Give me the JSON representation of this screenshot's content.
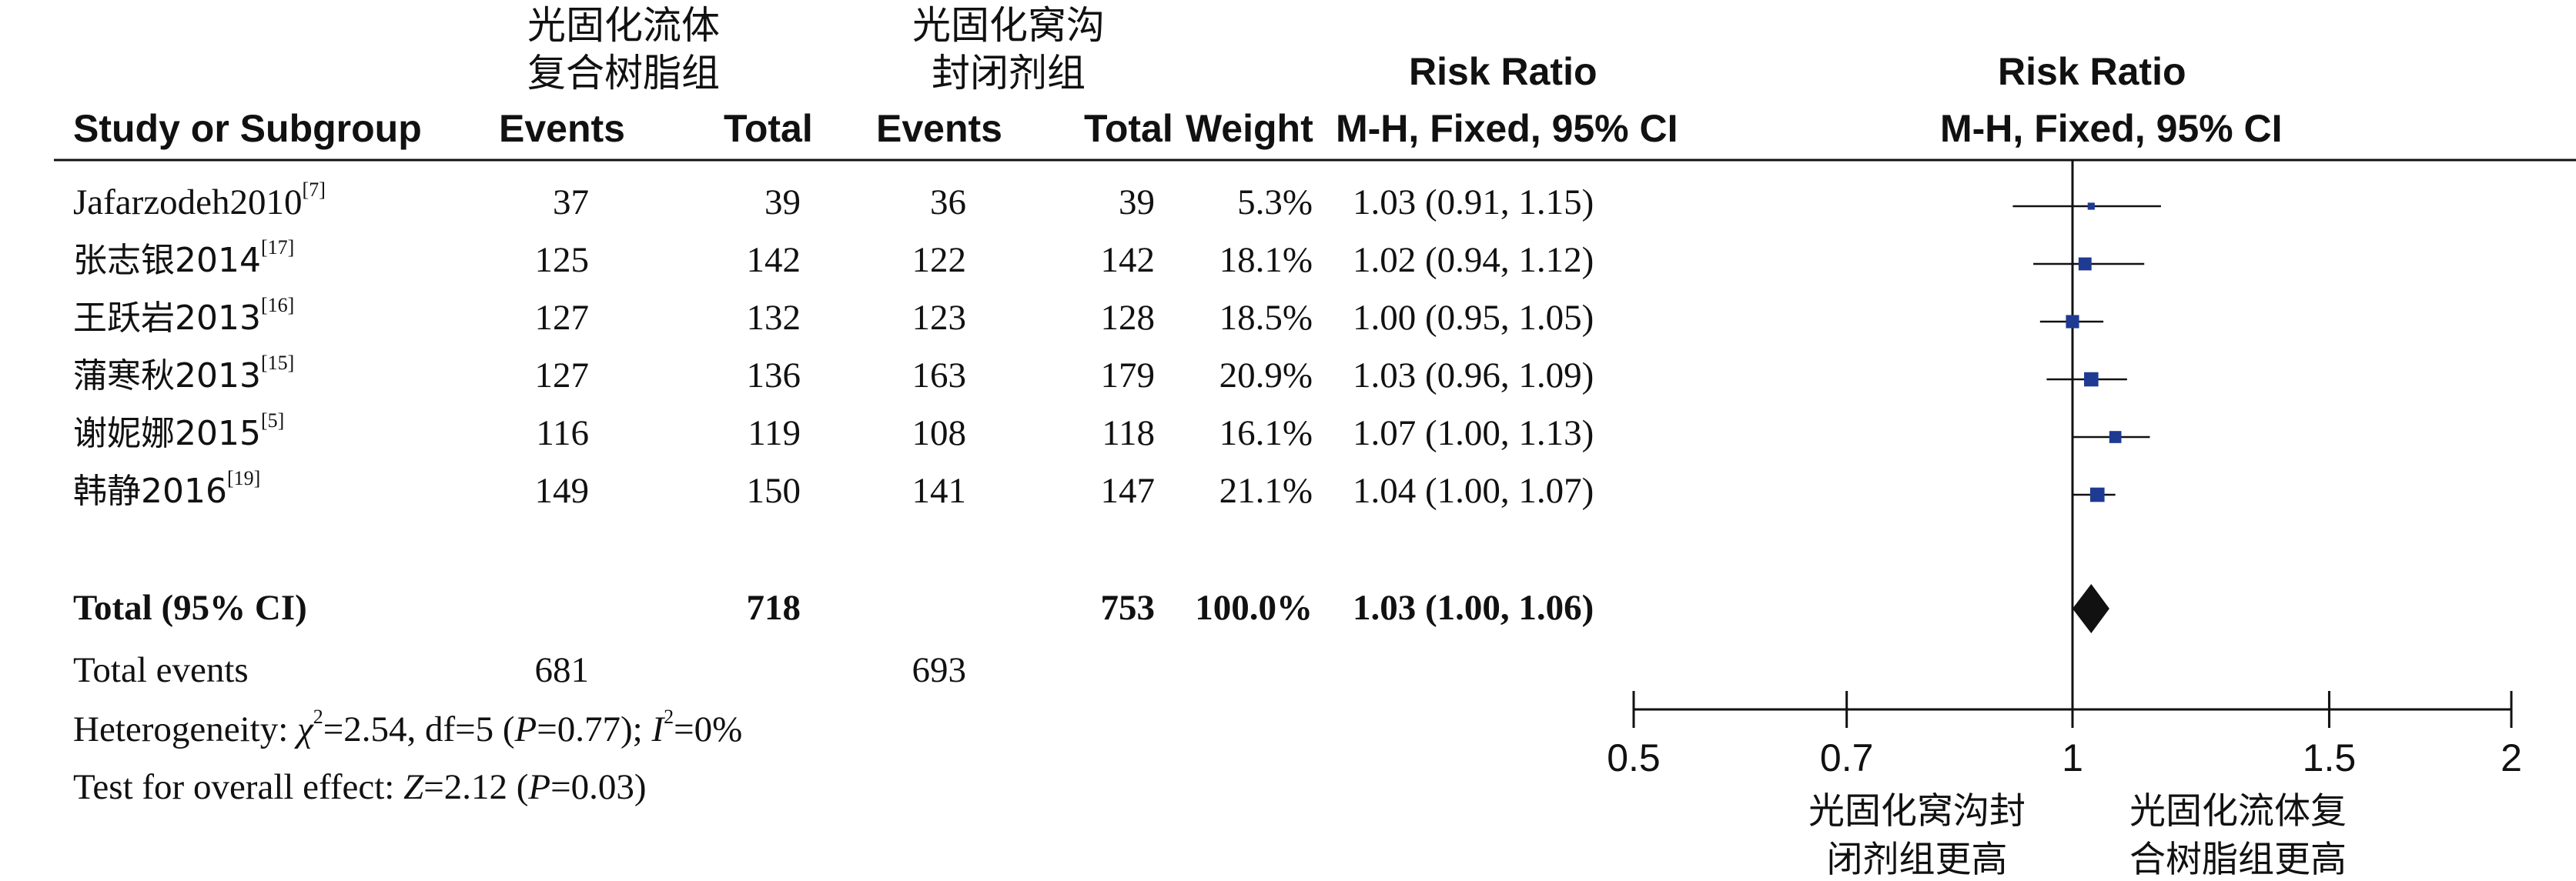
{
  "headers": {
    "group1_name": [
      "光固化流体",
      "复合树脂组"
    ],
    "group2_name": [
      "光固化窝沟",
      "封闭剂组"
    ],
    "study": "Study or Subgroup",
    "events1": "Events",
    "total1": "Total",
    "events2": "Events",
    "total2": "Total",
    "weight": "Weight",
    "rr_title": "Risk Ratio",
    "rr_method": "M-H, Fixed, 95% CI",
    "plot_title": "Risk Ratio",
    "plot_method": "M-H, Fixed, 95% CI"
  },
  "total_row": {
    "label": "Total (95% CI)",
    "total1": "718",
    "total2": "753",
    "weight": "100.0%",
    "rr": "1.03 (1.00, 1.06)"
  },
  "events_row": {
    "label": "Total events",
    "events1": "681",
    "events2": "693"
  },
  "heterogeneity": {
    "prefix": "Heterogeneity: ",
    "chi": "χ",
    "chi_val": "=2.54, df=5 (",
    "p": "P",
    "p_val": "=0.77); ",
    "i": "I",
    "i_val": "=0%"
  },
  "overall": {
    "prefix": "Test for overall effect: ",
    "z": "Z",
    "z_val": "=2.12 (",
    "p": "P",
    "p_val": "=0.03)"
  },
  "chart_data": {
    "type": "forest",
    "title": "Risk Ratio",
    "subtitle": "M-H, Fixed, 95% CI",
    "studies": [
      {
        "name": "Jafarzodeh2010",
        "ref": "[7]",
        "events1": 37,
        "total1": 39,
        "events2": 36,
        "total2": 39,
        "weight": "5.3%",
        "rr_text": "1.03 (0.91, 1.15)",
        "rr": 1.03,
        "lo": 0.91,
        "hi": 1.15
      },
      {
        "name": "张志银2014",
        "ref": "[17]",
        "events1": 125,
        "total1": 142,
        "events2": 122,
        "total2": 142,
        "weight": "18.1%",
        "rr_text": "1.02 (0.94, 1.12)",
        "rr": 1.02,
        "lo": 0.94,
        "hi": 1.12
      },
      {
        "name": "王跃岩2013",
        "ref": "[16]",
        "events1": 127,
        "total1": 132,
        "events2": 123,
        "total2": 128,
        "weight": "18.5%",
        "rr_text": "1.00 (0.95, 1.05)",
        "rr": 1.0,
        "lo": 0.95,
        "hi": 1.05
      },
      {
        "name": "蒲寒秋2013",
        "ref": "[15]",
        "events1": 127,
        "total1": 136,
        "events2": 163,
        "total2": 179,
        "weight": "20.9%",
        "rr_text": "1.03 (0.96, 1.09)",
        "rr": 1.03,
        "lo": 0.96,
        "hi": 1.09
      },
      {
        "name": "谢妮娜2015",
        "ref": "[5]",
        "events1": 116,
        "total1": 119,
        "events2": 108,
        "total2": 118,
        "weight": "16.1%",
        "rr_text": "1.07 (1.00, 1.13)",
        "rr": 1.07,
        "lo": 1.0,
        "hi": 1.13
      },
      {
        "name": "韩静2016",
        "ref": "[19]",
        "events1": 149,
        "total1": 150,
        "events2": 141,
        "total2": 147,
        "weight": "21.1%",
        "rr_text": "1.04 (1.00, 1.07)",
        "rr": 1.04,
        "lo": 1.0,
        "hi": 1.07
      }
    ],
    "pooled": {
      "rr": 1.03,
      "lo": 1.0,
      "hi": 1.06
    },
    "x_scale": "log",
    "x_ticks": [
      0.5,
      0.7,
      1,
      1.5,
      2
    ],
    "x_tick_labels": [
      "0.5",
      "0.7",
      "1",
      "1.5",
      "2"
    ],
    "xlim": [
      0.5,
      2
    ],
    "favours_left": [
      "光固化窝沟封",
      "闭剂组更高"
    ],
    "favours_right": [
      "光固化流体复",
      "合树脂组更高"
    ],
    "colors": {
      "marker": "#1f3a93",
      "diamond": "#111111",
      "line": "#111111"
    }
  }
}
